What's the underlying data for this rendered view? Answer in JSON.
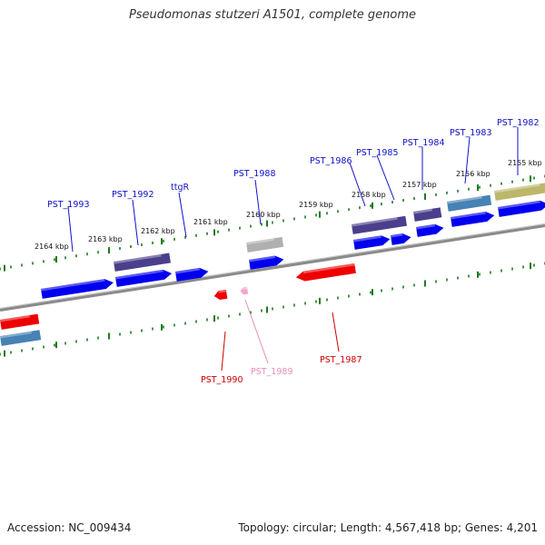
{
  "title": "Pseudomonas stutzeri A1501, complete genome",
  "footer": {
    "accession": "Accession: NC_009434",
    "summary": "Topology: circular; Length: 4,567,418 bp; Genes: 4,201"
  },
  "colors": {
    "backbone": "#8a8a8a",
    "tick": "#1e7a1e",
    "gene_blue": "#0000ee",
    "gene_purple": "#4a3f8c",
    "gene_steel": "#4682b4",
    "gene_olive": "#bdb76b",
    "gene_red": "#ee0000",
    "gene_pink": "#f4a6c8",
    "gene_gray": "#b0b0b0",
    "label_blue": "#1010c8",
    "label_red": "#cc0000",
    "label_pink": "#e890b8"
  },
  "scale_labels": [
    "2164 kbp",
    "2163 kbp",
    "2162 kbp",
    "2161 kbp",
    "2160 kbp",
    "2159 kbp",
    "2158 kbp",
    "2157 kbp",
    "2156 kbp",
    "2155 kbp"
  ],
  "gene_labels": {
    "top": [
      "PST_1993",
      "PST_1992",
      "ttgR",
      "PST_1988",
      "PST_1986",
      "PST_1985",
      "PST_1984",
      "PST_1983",
      "PST_1982"
    ],
    "bottom": [
      "PST_1990",
      "PST_1989",
      "PST_1987"
    ]
  }
}
